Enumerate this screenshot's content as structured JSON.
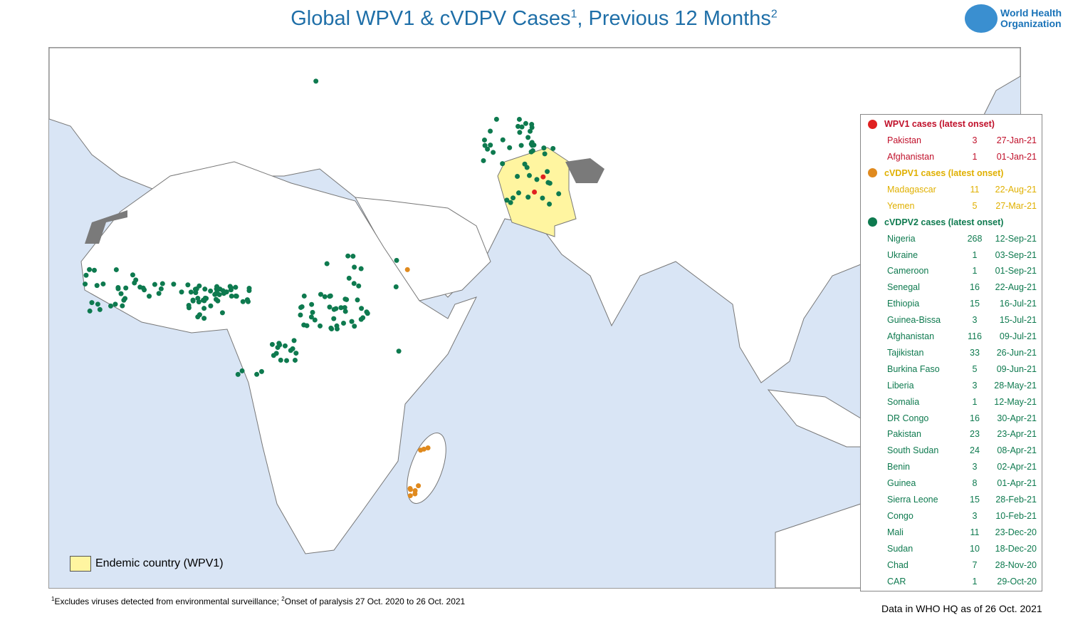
{
  "header": {
    "title": "Global WPV1 & cVDPV Cases",
    "title_sup1": "1",
    "title_mid": ", Previous 12 Months",
    "title_sup2": "2",
    "logo_line1": "World Health",
    "logo_line2": "Organization"
  },
  "colors": {
    "wpv1": "#e02020",
    "cvdpv1": "#e08a1e",
    "cvdpv2": "#0e7a4f",
    "endemic": "#fff5a0",
    "ocean": "#d9e5f5",
    "disputed": "#7a7a7a"
  },
  "legend": {
    "wpv1": {
      "label": "WPV1 cases (latest onset)",
      "rows": [
        [
          "Pakistan",
          "3",
          "27-Jan-21"
        ],
        [
          "Afghanistan",
          "1",
          "01-Jan-21"
        ]
      ]
    },
    "cvdpv1": {
      "label": "cVDPV1 cases (latest onset)",
      "rows": [
        [
          "Madagascar",
          "11",
          "22-Aug-21"
        ],
        [
          "Yemen",
          "5",
          "27-Mar-21"
        ]
      ]
    },
    "cvdpv2": {
      "label": "cVDPV2 cases (latest onset)",
      "rows": [
        [
          "Nigeria",
          "268",
          "12-Sep-21"
        ],
        [
          "Ukraine",
          "1",
          "03-Sep-21"
        ],
        [
          "Cameroon",
          "1",
          "01-Sep-21"
        ],
        [
          "Senegal",
          "16",
          "22-Aug-21"
        ],
        [
          "Ethiopia",
          "15",
          "16-Jul-21"
        ],
        [
          "Guinea-Bissa",
          "3",
          "15-Jul-21"
        ],
        [
          "Afghanistan",
          "116",
          "09-Jul-21"
        ],
        [
          "Tajikistan",
          "33",
          "26-Jun-21"
        ],
        [
          "Burkina Faso",
          "5",
          "09-Jun-21"
        ],
        [
          "Liberia",
          "3",
          "28-May-21"
        ],
        [
          "Somalia",
          "1",
          "12-May-21"
        ],
        [
          "DR Congo",
          "16",
          "30-Apr-21"
        ],
        [
          "Pakistan",
          "23",
          "23-Apr-21"
        ],
        [
          "South Sudan",
          "24",
          "08-Apr-21"
        ],
        [
          "Benin",
          "3",
          "02-Apr-21"
        ],
        [
          "Guinea",
          "8",
          "01-Apr-21"
        ],
        [
          "Sierra Leone",
          "15",
          "28-Feb-21"
        ],
        [
          "Congo",
          "3",
          "10-Feb-21"
        ],
        [
          "Mali",
          "11",
          "23-Dec-20"
        ],
        [
          "Sudan",
          "10",
          "18-Dec-20"
        ],
        [
          "Chad",
          "7",
          "28-Nov-20"
        ],
        [
          "CAR",
          "1",
          "29-Oct-20"
        ]
      ]
    }
  },
  "endemic_label": "Endemic country (WPV1)",
  "footnote": {
    "sup1": "1",
    "text1": "Excludes viruses detected from environmental surveillance;  ",
    "sup2": "2",
    "text2": "Onset of paralysis 27 Oct. 2020 to 26 Oct. 2021"
  },
  "as_of": "Data in WHO HQ as of 26 Oct. 2021"
}
